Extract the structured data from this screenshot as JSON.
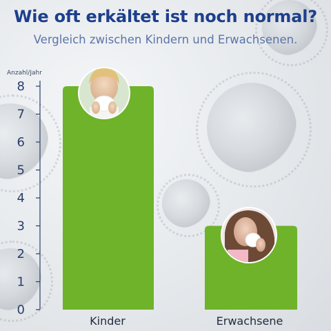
{
  "title": "Wie oft erkältet ist noch normal?",
  "subtitle": "Vergleich zwischen Kindern und Erwachsenen.",
  "colors": {
    "bar": "#6eb329",
    "title": "#1d3f8c",
    "subtitle": "#5b74a7",
    "axis": "#2a3e6a"
  },
  "chart_data": {
    "type": "bar",
    "categories": [
      "Kinder",
      "Erwachsene"
    ],
    "values": [
      8,
      3
    ],
    "ylabel": "Anzahl/Jahr",
    "ylim": [
      0,
      8
    ],
    "yticks": [
      0,
      1,
      2,
      3,
      4,
      5,
      6,
      7,
      8
    ],
    "grid": false,
    "legend": "none"
  }
}
